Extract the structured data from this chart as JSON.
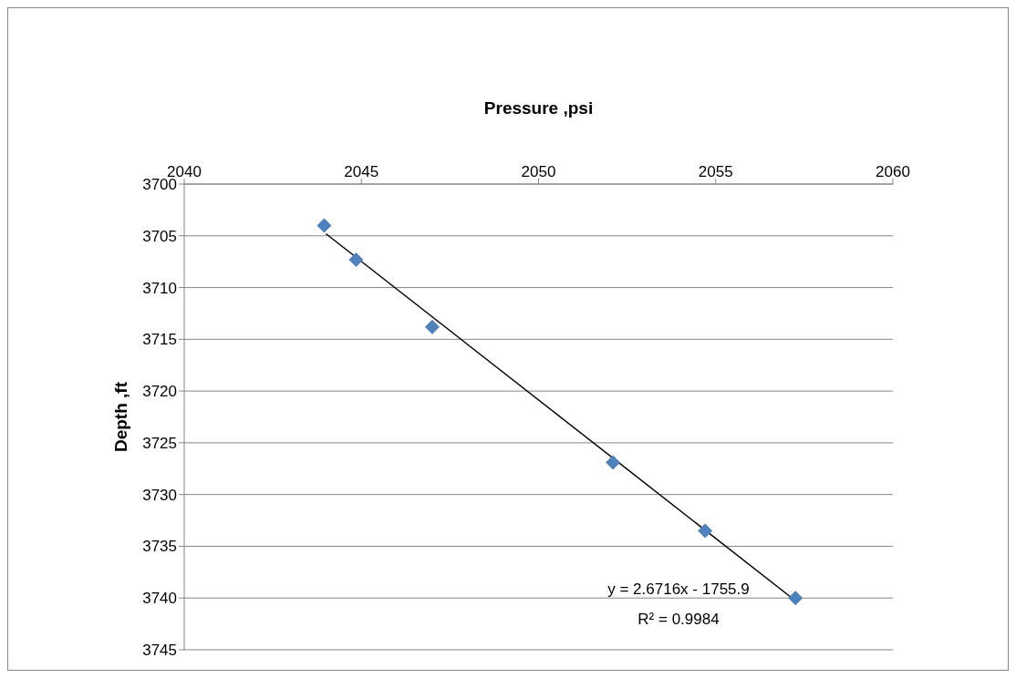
{
  "chart_data": {
    "type": "scatter",
    "xlabel": "Pressure ,psi",
    "ylabel": "Depth ,ft",
    "xlim": [
      2040,
      2060
    ],
    "xticks": [
      2040,
      2045,
      2050,
      2055,
      2060
    ],
    "ylim": [
      3745,
      3700
    ],
    "yticks": [
      3700,
      3705,
      3710,
      3715,
      3720,
      3725,
      3730,
      3735,
      3740,
      3745
    ],
    "grid": "y",
    "series": [
      {
        "color": "#4f81bd",
        "marker": "diamond",
        "x": [
          2043.95,
          2044.85,
          2047.0,
          2052.1,
          2054.7,
          2057.25
        ],
        "values": [
          3704,
          3707.3,
          3713.8,
          3726.9,
          3733.5,
          3740
        ]
      },
      {
        "type": "line",
        "color": "#000000",
        "marker": "none",
        "x": [
          2044,
          2057.3
        ],
        "values": [
          3704.8,
          3740.4
        ]
      }
    ],
    "annotations": [
      "y = 2.6716x - 1755.9",
      "R² = 0.9984"
    ]
  }
}
